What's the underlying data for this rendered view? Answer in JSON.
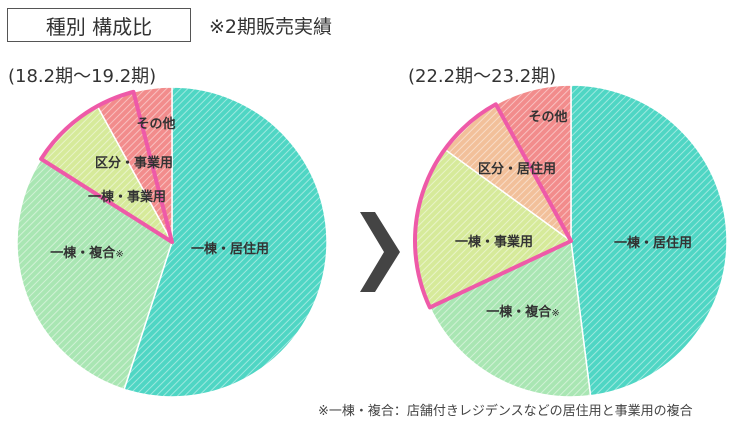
{
  "header": {
    "title": "種別 構成比",
    "note": "※2期販売実績"
  },
  "footnote": "※一棟・複合：店舗付きレジデンスなどの居住用と事業用の複合",
  "colors": {
    "residential": "#4fd6c4",
    "complex": "#a9e6b3",
    "business": "#d6ea9a",
    "division": "#f2c09a",
    "other": "#f28c8c",
    "highlight": "#ee5aa8",
    "arrow": "#444444"
  },
  "chart_data": [
    {
      "type": "pie",
      "title": "(18.2期〜19.2期)",
      "slices": [
        {
          "label": "一棟・居住用",
          "value": 55,
          "color_key": "residential"
        },
        {
          "label": "一棟・複合",
          "label_mark": "※",
          "value": 29,
          "color_key": "complex"
        },
        {
          "label": "一棟・事業用",
          "value": 8,
          "color_key": "business",
          "highlight": true
        },
        {
          "label": "区分・事業用",
          "value": 4,
          "color_key": "other",
          "highlight": true
        },
        {
          "label": "その他",
          "value": 4,
          "color_key": "other"
        }
      ]
    },
    {
      "type": "pie",
      "title": "(22.2期〜23.2期)",
      "slices": [
        {
          "label": "一棟・居住用",
          "value": 48,
          "color_key": "residential"
        },
        {
          "label": "一棟・複合",
          "label_mark": "※",
          "value": 20,
          "color_key": "complex"
        },
        {
          "label": "一棟・事業用",
          "value": 17,
          "color_key": "business",
          "highlight": true
        },
        {
          "label": "区分・居住用",
          "value": 7,
          "color_key": "division",
          "highlight": true
        },
        {
          "label": "その他",
          "value": 8,
          "color_key": "other"
        }
      ]
    }
  ]
}
